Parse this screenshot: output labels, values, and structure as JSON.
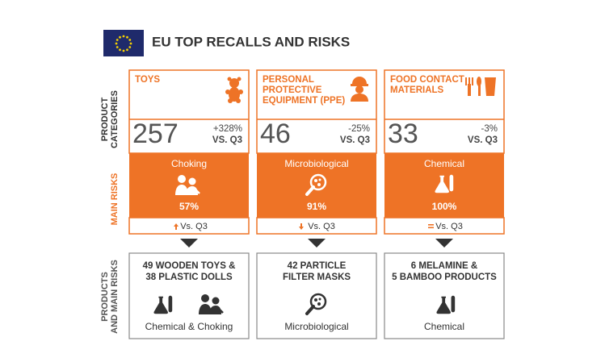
{
  "header": {
    "title": "EU TOP RECALLS AND RISKS"
  },
  "row_labels": {
    "categories": [
      "PRODUCT",
      "CATEGORIES"
    ],
    "risks": "MAIN RISKS",
    "products": [
      "PRODUCTS",
      "AND MAIN RISKS"
    ]
  },
  "columns": [
    {
      "category": [
        "TOYS"
      ],
      "count": "257",
      "change": "+328%",
      "vs": "VS. Q3",
      "risk": "Choking",
      "risk_share": "57%",
      "trend": "Vs. Q3",
      "products": [
        "49 WOODEN TOYS &",
        "38 PLASTIC DOLLS"
      ],
      "product_risks": "Chemical & Choking"
    },
    {
      "category": [
        "PERSONAL",
        "PROTECTIVE",
        "EQUIPMENT (PPE)"
      ],
      "count": "46",
      "change": "-25%",
      "vs": "VS. Q3",
      "risk": "Microbiological",
      "risk_share": "91%",
      "trend": "Vs. Q3",
      "products": [
        "42 PARTICLE",
        "FILTER MASKS"
      ],
      "product_risks": "Microbiological"
    },
    {
      "category": [
        "FOOD CONTACT",
        "MATERIALS"
      ],
      "count": "33",
      "change": "-3%",
      "vs": "VS. Q3",
      "risk": "Chemical",
      "risk_share": "100%",
      "trend": "Vs. Q3",
      "products": [
        "6 MELAMINE &",
        "5 BAMBOO PRODUCTS"
      ],
      "product_risks": "Chemical"
    }
  ]
}
